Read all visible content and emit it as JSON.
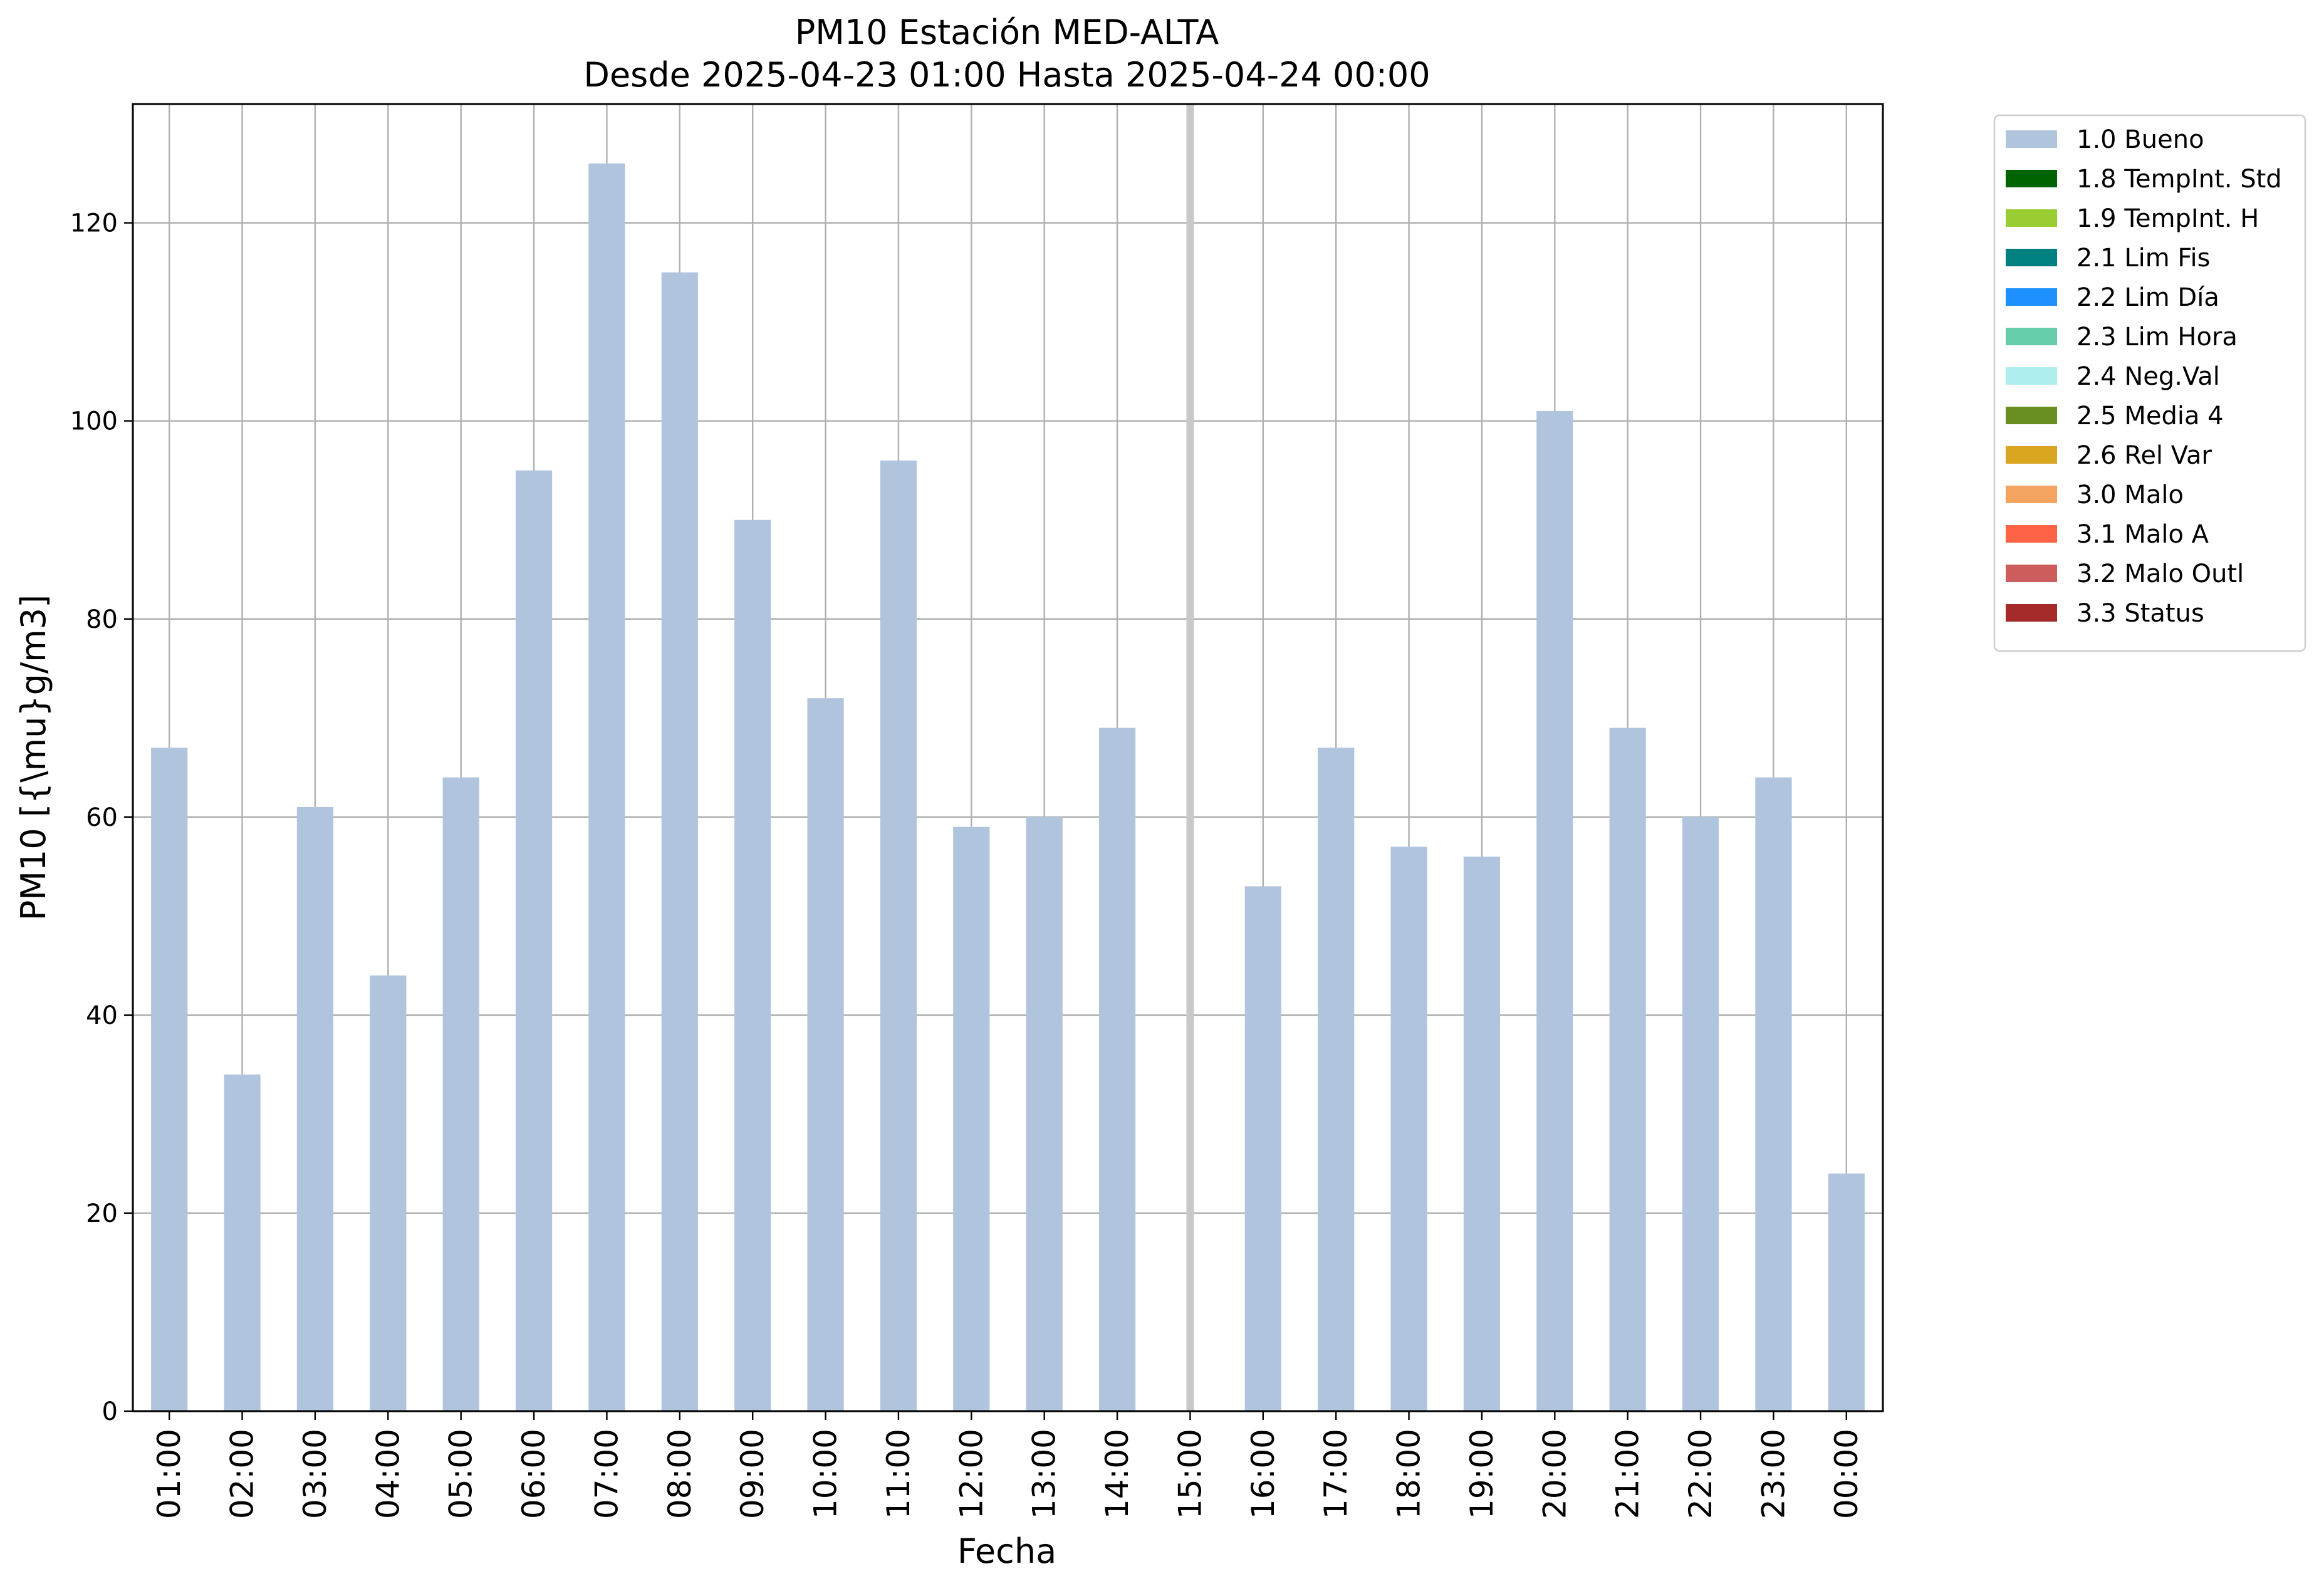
{
  "chart_data": {
    "type": "bar",
    "title": "PM10 Estación MED-ALTA",
    "subtitle": "Desde 2025-04-23 01:00 Hasta 2025-04-24 00:00",
    "xlabel": "Fecha",
    "ylabel": "PM10 [{\\mu}g/m3]",
    "ylim": [
      0,
      132
    ],
    "yticks": [
      0,
      20,
      40,
      60,
      80,
      100,
      120
    ],
    "grid": true,
    "legend_position": "outside-top-right",
    "categories": [
      "01:00",
      "02:00",
      "03:00",
      "04:00",
      "05:00",
      "06:00",
      "07:00",
      "08:00",
      "09:00",
      "10:00",
      "11:00",
      "12:00",
      "13:00",
      "14:00",
      "15:00",
      "16:00",
      "17:00",
      "18:00",
      "19:00",
      "20:00",
      "21:00",
      "22:00",
      "23:00",
      "00:00"
    ],
    "series": [
      {
        "name": "1.0 Bueno",
        "color": "#b0c4de",
        "values": [
          67,
          34,
          61,
          44,
          64,
          95,
          126,
          115,
          90,
          72,
          96,
          59,
          60,
          69,
          null,
          53,
          67,
          57,
          56,
          101,
          69,
          60,
          64,
          24
        ]
      }
    ],
    "missing_marker_category": "15:00",
    "legend": [
      {
        "label": "1.0 Bueno",
        "color": "#b0c4de"
      },
      {
        "label": "1.8 TempInt. Std",
        "color": "#006400"
      },
      {
        "label": "1.9 TempInt. H",
        "color": "#9acd32"
      },
      {
        "label": "2.1 Lim Fis",
        "color": "#008080"
      },
      {
        "label": "2.2 Lim Día",
        "color": "#1e90ff"
      },
      {
        "label": "2.3 Lim Hora",
        "color": "#66cdaa"
      },
      {
        "label": "2.4 Neg.Val",
        "color": "#afeeee"
      },
      {
        "label": "2.5 Media 4",
        "color": "#6b8e23"
      },
      {
        "label": "2.6 Rel Var",
        "color": "#daa520"
      },
      {
        "label": "3.0 Malo",
        "color": "#f4a460"
      },
      {
        "label": "3.1 Malo A",
        "color": "#ff6347"
      },
      {
        "label": "3.2 Malo Outl",
        "color": "#cd5c5c"
      },
      {
        "label": "3.3 Status",
        "color": "#a52a2a"
      }
    ]
  }
}
